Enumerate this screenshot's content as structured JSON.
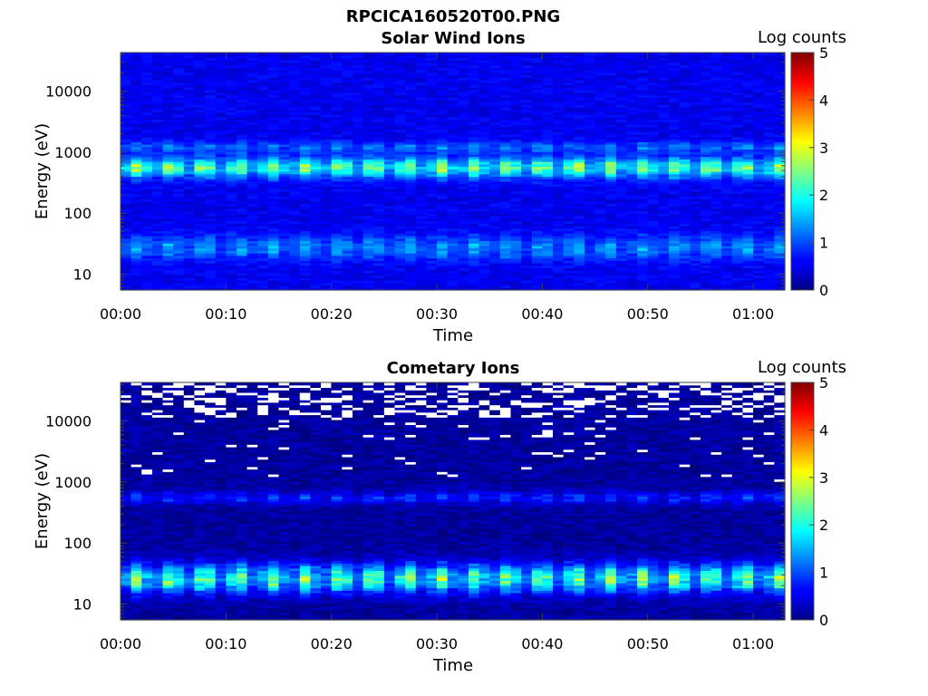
{
  "figure": {
    "title": "RPCICA160520T00.PNG",
    "background": "#ffffff"
  },
  "chart_data": [
    {
      "type": "heatmap",
      "title": "Solar Wind Ions",
      "xlabel": "Time",
      "ylabel": "Energy (eV)",
      "x_ticks": [
        "00:00",
        "00:10",
        "00:20",
        "00:30",
        "00:40",
        "00:50",
        "01:00"
      ],
      "x_tick_minutes": [
        0,
        10,
        20,
        30,
        40,
        50,
        60
      ],
      "xlim_minutes": [
        0,
        63
      ],
      "y_ticks": [
        "10",
        "100",
        "1000",
        "10000"
      ],
      "y_tick_values": [
        10,
        100,
        1000,
        10000
      ],
      "ylim_eV": [
        5.5,
        43000
      ],
      "scale_y": "log",
      "colorbar_label": "Log counts",
      "colorbar_ticks": [
        "0",
        "1",
        "2",
        "3",
        "4",
        "5"
      ],
      "clim": [
        0,
        5
      ],
      "background_level": 0.55,
      "time_bins": 63,
      "energy_bins": 96,
      "sweep_period_minutes": 3.2,
      "features": [
        {
          "name": "low-energy band",
          "energy_range_eV": [
            18,
            42
          ],
          "peak_log_counts": 1.5,
          "pulsed": true
        },
        {
          "name": "solar wind proton peak",
          "energy_range_eV": [
            400,
            800
          ],
          "peak_log_counts": 2.7,
          "pulsed": true
        },
        {
          "name": "alpha peak",
          "energy_range_eV": [
            1000,
            1500
          ],
          "peak_log_counts": 1.3,
          "pulsed": true
        }
      ],
      "empty_level": null
    },
    {
      "type": "heatmap",
      "title": "Cometary Ions",
      "xlabel": "Time",
      "ylabel": "Energy (eV)",
      "x_ticks": [
        "00:00",
        "00:10",
        "00:20",
        "00:30",
        "00:40",
        "00:50",
        "01:00"
      ],
      "x_tick_minutes": [
        0,
        10,
        20,
        30,
        40,
        50,
        60
      ],
      "xlim_minutes": [
        0,
        63
      ],
      "y_ticks": [
        "10",
        "100",
        "1000",
        "10000"
      ],
      "y_tick_values": [
        10,
        100,
        1000,
        10000
      ],
      "ylim_eV": [
        5.5,
        43000
      ],
      "scale_y": "log",
      "colorbar_label": "Log counts",
      "colorbar_ticks": [
        "0",
        "1",
        "2",
        "3",
        "4",
        "5"
      ],
      "clim": [
        0,
        5
      ],
      "background_level": 0.15,
      "time_bins": 63,
      "energy_bins": 96,
      "sweep_period_minutes": 3.2,
      "features": [
        {
          "name": "low-energy band",
          "energy_range_eV": [
            16,
            45
          ],
          "peak_log_counts": 2.6,
          "pulsed": true
        },
        {
          "name": "faint proton trace",
          "energy_range_eV": [
            450,
            700
          ],
          "peak_log_counts": 1.0,
          "pulsed": true
        }
      ],
      "empty_level": "white (no counts) — frequent above ~12000 eV, scattered 1000–12000 eV"
    }
  ]
}
